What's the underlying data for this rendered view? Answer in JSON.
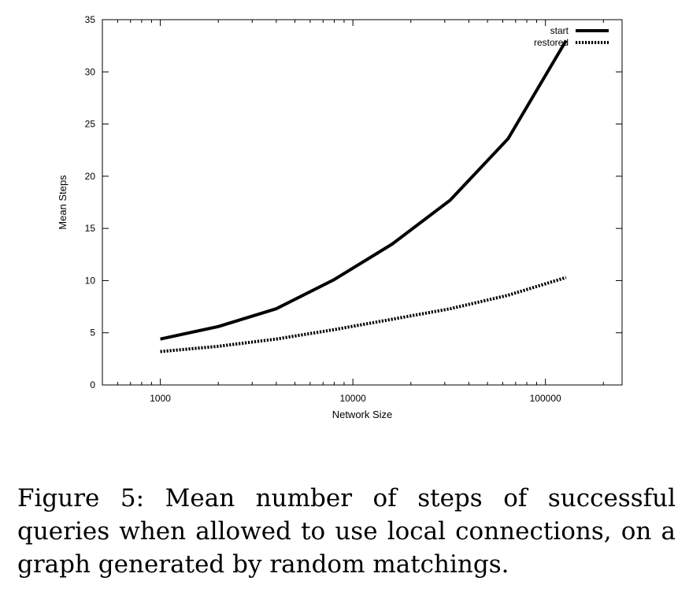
{
  "chart_data": {
    "type": "line",
    "title": "",
    "xlabel": "Network Size",
    "ylabel": "Mean Steps",
    "x_scale": "log",
    "xlim": [
      500,
      250000
    ],
    "ylim": [
      0,
      35
    ],
    "x_ticks": [
      1000,
      10000,
      100000
    ],
    "x_tick_labels": [
      "1000",
      "10000",
      "100000"
    ],
    "y_ticks": [
      0,
      5,
      10,
      15,
      20,
      25,
      30,
      35
    ],
    "y_tick_labels": [
      "0",
      "5",
      "10",
      "15",
      "20",
      "25",
      "30",
      "35"
    ],
    "grid": false,
    "legend_position": "top-right",
    "x": [
      1000,
      2000,
      4000,
      8000,
      16000,
      32000,
      64000,
      128000
    ],
    "series": [
      {
        "name": "start",
        "style": "solid",
        "color": "#000000",
        "values": [
          4.4,
          5.6,
          7.3,
          10.1,
          13.5,
          17.7,
          23.6,
          33.0
        ]
      },
      {
        "name": "restored",
        "style": "dotted",
        "color": "#000000",
        "values": [
          3.2,
          3.7,
          4.4,
          5.3,
          6.3,
          7.3,
          8.6,
          10.3
        ]
      }
    ]
  },
  "caption": "Figure 5: Mean number of steps of successful queries when allowed to use local connections, on a graph generated by random matchings."
}
